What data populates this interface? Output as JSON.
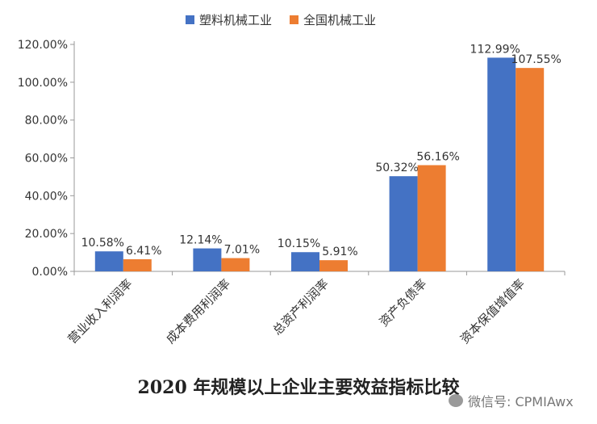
{
  "chart_data": {
    "type": "bar",
    "title": "2020 年规模以上企业主要效益指标比较",
    "categories": [
      "营业收入利润率",
      "成本费用利润率",
      "总资产利润率",
      "资产负债率",
      "资本保值增值率"
    ],
    "series": [
      {
        "name": "塑料机械工业",
        "color": "#4472C4",
        "values": [
          10.58,
          12.14,
          10.15,
          50.32,
          112.99
        ],
        "labels": [
          "10.58%",
          "12.14%",
          "10.15%",
          "50.32%",
          "112.99%"
        ]
      },
      {
        "name": "全国机械工业",
        "color": "#ED7D31",
        "values": [
          6.41,
          7.01,
          5.91,
          56.16,
          107.55
        ],
        "labels": [
          "6.41%",
          "7.01%",
          "5.91%",
          "56.16%",
          "107.55%"
        ]
      }
    ],
    "yticks": [
      "0.00%",
      "20.00%",
      "40.00%",
      "60.00%",
      "80.00%",
      "100.00%",
      "120.00%"
    ],
    "ylim": [
      0,
      120
    ],
    "grid": false,
    "legend": "top-center"
  },
  "watermark": {
    "text": "微信号: CPMIAwx"
  }
}
